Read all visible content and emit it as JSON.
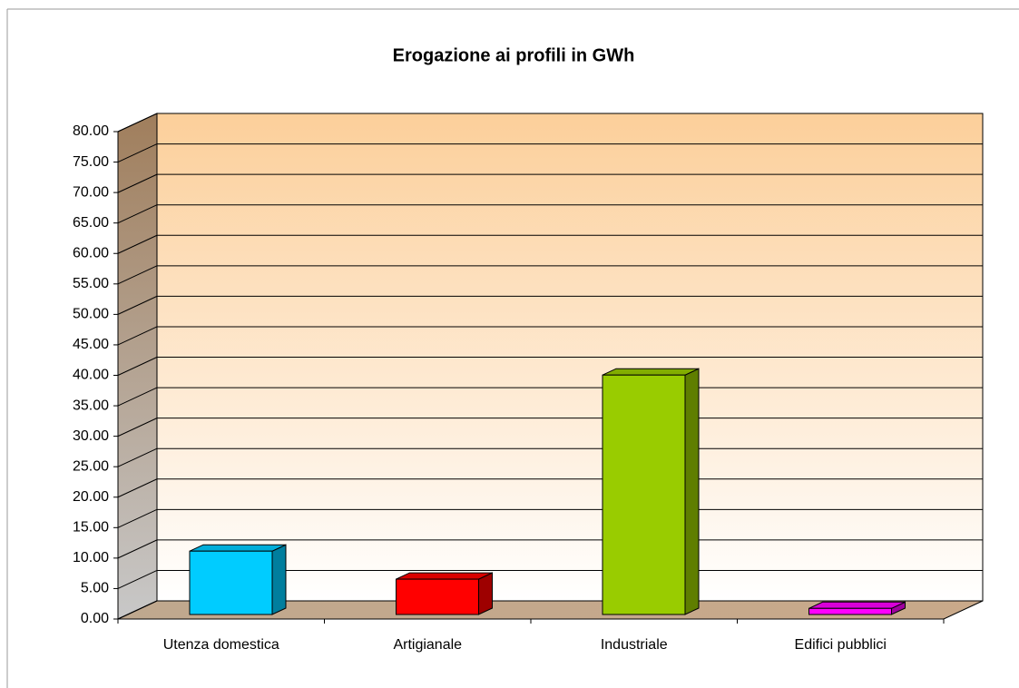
{
  "chart_data": {
    "type": "bar3d",
    "title": "Erogazione ai profili in GWh",
    "categories": [
      "Utenza domestica",
      "Artigianale",
      "Industriale",
      "Edifici pubblici"
    ],
    "values": [
      10.4,
      5.8,
      39.3,
      1.0
    ],
    "colors": [
      "#00ccff",
      "#ff0000",
      "#99cc00",
      "#ff00ff"
    ],
    "ylim": [
      0,
      80
    ],
    "yticks": [
      {
        "value": 0,
        "label": "0.00"
      },
      {
        "value": 5,
        "label": "5.00"
      },
      {
        "value": 10,
        "label": "10.00"
      },
      {
        "value": 15,
        "label": "15.00"
      },
      {
        "value": 20,
        "label": "20.00"
      },
      {
        "value": 25,
        "label": "25.00"
      },
      {
        "value": 30,
        "label": "30.00"
      },
      {
        "value": 35,
        "label": "35.00"
      },
      {
        "value": 40,
        "label": "40.00"
      },
      {
        "value": 45,
        "label": "45.00"
      },
      {
        "value": 50,
        "label": "50.00"
      },
      {
        "value": 55,
        "label": "55.00"
      },
      {
        "value": 60,
        "label": "60.00"
      },
      {
        "value": 65,
        "label": "65.00"
      },
      {
        "value": 70,
        "label": "70.00"
      },
      {
        "value": 75,
        "label": "75.00"
      },
      {
        "value": 80,
        "label": "80.00"
      }
    ],
    "grid": true
  }
}
